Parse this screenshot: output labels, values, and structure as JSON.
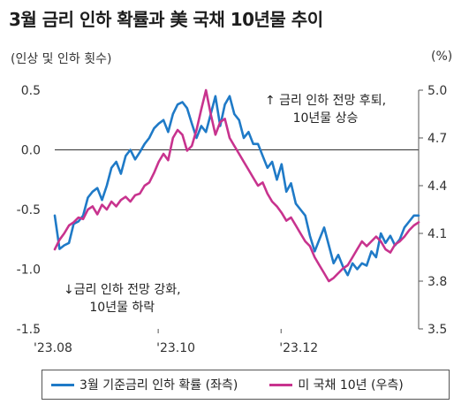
{
  "title": "3월 금리 인하 확률과 美 국채 10년물 추이",
  "unit_left": "(인상 및 인하 횟수)",
  "unit_right": "(%)",
  "annotations": {
    "up_line1": "↑ 금리 인하 전망 후퇴,",
    "up_line2": "10년물 상승",
    "down_line1": "↓금리 인하 전망 강화,",
    "down_line2": "10년물 하락"
  },
  "colors": {
    "series1": "#1f7ac7",
    "series2": "#c8338e",
    "zero_line": "#333333"
  },
  "chart_data": {
    "type": "line",
    "title": "3월 금리 인하 확률과 美 국채 10년물 추이",
    "x_ticks": [
      "'23.08",
      "'23.10",
      "'23.12"
    ],
    "y_left": {
      "label": "(인상 및 인하 횟수)",
      "ticks": [
        "0.5",
        "0.0",
        "-0.5",
        "-1.0",
        "-1.5"
      ],
      "range": [
        -1.5,
        0.5
      ]
    },
    "y_right": {
      "label": "(%)",
      "ticks": [
        "5.0",
        "4.7",
        "4.4",
        "4.1",
        "3.8",
        "3.5"
      ],
      "range": [
        3.5,
        5.0
      ]
    },
    "grid": false,
    "legend_position": "bottom",
    "series": [
      {
        "name": "3월 기준금리 인하 확률 (좌측)",
        "axis": "left",
        "values": [
          -0.55,
          -0.83,
          -0.8,
          -0.78,
          -0.62,
          -0.6,
          -0.55,
          -0.4,
          -0.35,
          -0.32,
          -0.42,
          -0.3,
          -0.15,
          -0.1,
          -0.2,
          -0.05,
          0.0,
          -0.08,
          -0.02,
          0.05,
          0.1,
          0.18,
          0.22,
          0.25,
          0.15,
          0.3,
          0.38,
          0.4,
          0.35,
          0.22,
          0.1,
          0.2,
          0.15,
          0.3,
          0.45,
          0.2,
          0.38,
          0.45,
          0.3,
          0.25,
          0.1,
          0.15,
          0.05,
          0.05,
          -0.05,
          -0.15,
          -0.1,
          -0.25,
          -0.12,
          -0.35,
          -0.28,
          -0.45,
          -0.5,
          -0.55,
          -0.72,
          -0.85,
          -0.75,
          -0.65,
          -0.8,
          -0.95,
          -0.88,
          -0.98,
          -1.05,
          -0.95,
          -1.0,
          -0.95,
          -0.97,
          -0.85,
          -0.9,
          -0.7,
          -0.78,
          -0.72,
          -0.8,
          -0.75,
          -0.65,
          -0.6,
          -0.55,
          -0.55
        ]
      },
      {
        "name": "미 국채 10년 (우측)",
        "axis": "right",
        "values": [
          4.0,
          4.06,
          4.1,
          4.15,
          4.17,
          4.2,
          4.19,
          4.25,
          4.27,
          4.22,
          4.28,
          4.25,
          4.3,
          4.27,
          4.31,
          4.33,
          4.3,
          4.34,
          4.35,
          4.4,
          4.42,
          4.48,
          4.55,
          4.6,
          4.56,
          4.7,
          4.75,
          4.72,
          4.62,
          4.65,
          4.75,
          4.88,
          5.0,
          4.85,
          4.72,
          4.8,
          4.82,
          4.7,
          4.65,
          4.6,
          4.55,
          4.5,
          4.45,
          4.4,
          4.42,
          4.35,
          4.3,
          4.27,
          4.23,
          4.18,
          4.2,
          4.15,
          4.1,
          4.05,
          4.02,
          3.95,
          3.9,
          3.85,
          3.8,
          3.82,
          3.85,
          3.88,
          3.9,
          3.95,
          4.0,
          4.05,
          4.02,
          4.05,
          4.08,
          4.05,
          4.0,
          3.98,
          4.03,
          4.05,
          4.08,
          4.12,
          4.15,
          4.17
        ]
      }
    ]
  }
}
